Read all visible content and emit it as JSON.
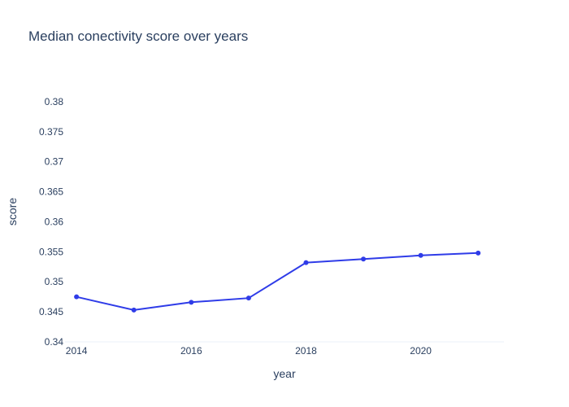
{
  "chart_data": {
    "type": "line",
    "title": "Median conectivity score over years",
    "xlabel": "year",
    "ylabel": "score",
    "x": [
      2014,
      2015,
      2016,
      2017,
      2018,
      2019,
      2020,
      2021
    ],
    "series": [
      {
        "values": [
          0.3475,
          0.3453,
          0.3466,
          0.3473,
          0.3532,
          0.3538,
          0.3544,
          0.3548
        ],
        "color": "#2f3ce8"
      }
    ],
    "xlim": [
      2013.8,
      2021.45
    ],
    "ylim": [
      0.34,
      0.3842
    ],
    "x_ticks": [
      "2014",
      "2016",
      "2018",
      "2020"
    ],
    "y_ticks": [
      "0.34",
      "0.345",
      "0.35",
      "0.355",
      "0.36",
      "0.365",
      "0.37",
      "0.375",
      "0.38"
    ],
    "grid": false,
    "legend": "none"
  }
}
